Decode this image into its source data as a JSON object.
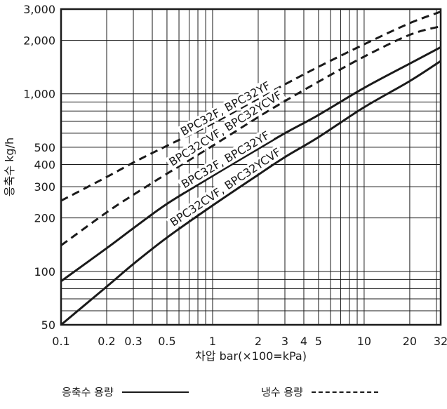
{
  "chart_data": {
    "type": "line",
    "xlabel": "차압 bar(×100=kPa)",
    "ylabel": "응축수 kg/h",
    "x_scale": "log",
    "y_scale": "log",
    "xlim": [
      0.1,
      32
    ],
    "ylim": [
      50,
      3000
    ],
    "x_ticks": [
      {
        "v": 0.1,
        "label": "0.1"
      },
      {
        "v": 0.2,
        "label": "0.2"
      },
      {
        "v": 0.3,
        "label": "0.3"
      },
      {
        "v": 0.5,
        "label": "0.5"
      },
      {
        "v": 1,
        "label": "1"
      },
      {
        "v": 2,
        "label": "2"
      },
      {
        "v": 3,
        "label": "3"
      },
      {
        "v": 4,
        "label": "4"
      },
      {
        "v": 5,
        "label": "5"
      },
      {
        "v": 10,
        "label": "10"
      },
      {
        "v": 20,
        "label": "20"
      },
      {
        "v": 32,
        "label": "32"
      }
    ],
    "y_ticks": [
      {
        "v": 50,
        "label": "50"
      },
      {
        "v": 100,
        "label": "100"
      },
      {
        "v": 200,
        "label": "200"
      },
      {
        "v": 300,
        "label": "300"
      },
      {
        "v": 400,
        "label": "400"
      },
      {
        "v": 500,
        "label": "500"
      },
      {
        "v": 1000,
        "label": "1,000"
      },
      {
        "v": 2000,
        "label": "2,000"
      },
      {
        "v": 3000,
        "label": "3,000"
      }
    ],
    "x_grid": [
      0.1,
      0.2,
      0.3,
      0.4,
      0.5,
      0.6,
      0.7,
      0.8,
      0.9,
      1,
      2,
      3,
      4,
      5,
      6,
      7,
      8,
      9,
      10,
      20,
      30,
      32
    ],
    "y_grid": [
      50,
      60,
      70,
      80,
      90,
      100,
      200,
      300,
      400,
      500,
      600,
      700,
      800,
      900,
      1000,
      2000,
      3000
    ],
    "series": [
      {
        "name": "BPC32F, BPC32YF",
        "style": "dashed",
        "x": [
          0.1,
          0.2,
          0.3,
          0.5,
          1,
          2,
          3,
          5,
          10,
          20,
          32
        ],
        "y": [
          250,
          340,
          410,
          510,
          680,
          940,
          1130,
          1420,
          1900,
          2500,
          2900
        ]
      },
      {
        "name": "BPC32CVF, BPC32YCVF",
        "style": "dashed",
        "x": [
          0.1,
          0.2,
          0.3,
          0.5,
          1,
          2,
          3,
          5,
          10,
          20,
          32
        ],
        "y": [
          140,
          215,
          270,
          355,
          510,
          740,
          910,
          1170,
          1620,
          2150,
          2400
        ]
      },
      {
        "name": "BPC32F, BPC32YF",
        "style": "solid",
        "x": [
          0.1,
          0.2,
          0.3,
          0.5,
          1,
          2,
          3,
          5,
          10,
          20,
          32
        ],
        "y": [
          88,
          135,
          175,
          240,
          345,
          490,
          600,
          760,
          1080,
          1480,
          1830
        ]
      },
      {
        "name": "BPC32CVF, BPC32YCVF",
        "style": "solid",
        "x": [
          0.1,
          0.2,
          0.3,
          0.5,
          1,
          2,
          3,
          5,
          10,
          20,
          32
        ],
        "y": [
          50,
          82,
          110,
          155,
          235,
          350,
          440,
          570,
          840,
          1180,
          1530
        ]
      }
    ],
    "annotations": [
      "BPC32F, BPC32YF",
      "BPC32CVF, BPC32YCVF",
      "BPC32F, BPC32YF",
      "BPC32CVF, BPC32YCVF"
    ],
    "grid": true,
    "legend_position": "bottom"
  },
  "legend": {
    "solid_label": "응축수 용량",
    "dashed_label": "냉수 용량"
  }
}
